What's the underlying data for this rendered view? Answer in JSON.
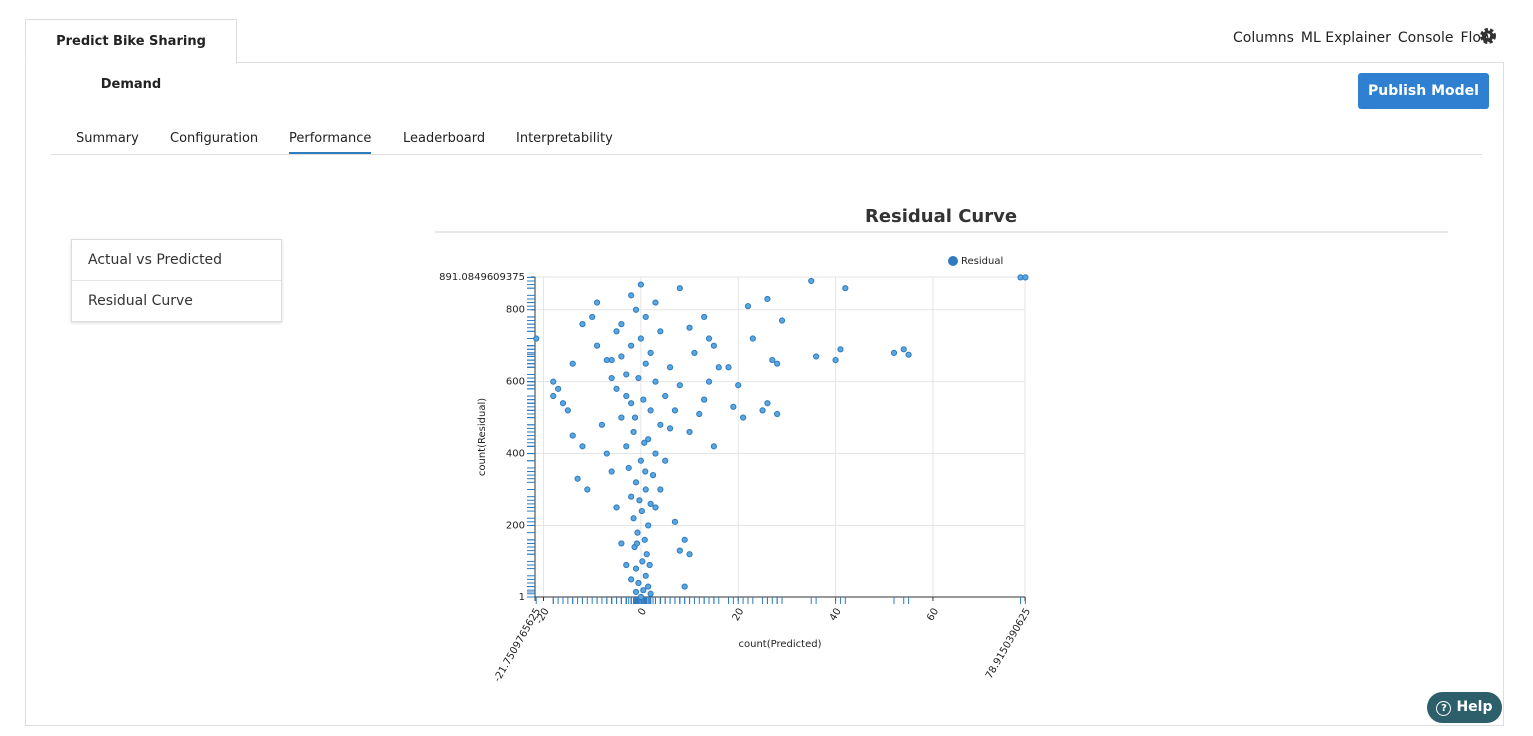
{
  "header": {
    "tab": "Predict Bike Sharing Demand"
  },
  "nav": {
    "links": [
      "Columns",
      "ML Explainer",
      "Console",
      "Flow"
    ]
  },
  "publish_button": "Publish Model",
  "tabs": {
    "items": [
      "Summary",
      "Configuration",
      "Performance",
      "Leaderboard",
      "Interpretability"
    ],
    "active": 2
  },
  "side_menu": [
    "Actual vs Predicted",
    "Residual Curve"
  ],
  "help": "Help",
  "chart_data": {
    "type": "scatter",
    "title": "Residual Curve",
    "x_label": "count(Predicted)",
    "y_label": "count(Residual)",
    "xlim": [
      -21.7509765625,
      78.9150390625
    ],
    "ylim": [
      1,
      891.0849609375
    ],
    "xticks": [
      -21.7509765625,
      -20,
      0,
      20,
      40,
      60,
      78.9150390625
    ],
    "yticks": [
      1,
      200,
      400,
      600,
      800,
      891.0849609375
    ],
    "grid": true,
    "legend": "top-right",
    "series": [
      {
        "name": "Residual",
        "color": "#2f7bbf",
        "x": [
          0,
          0.5,
          -0.5,
          1,
          -1,
          0.3,
          1.2,
          -1.3,
          0.8,
          -0.7,
          1.5,
          -1.5,
          0.2,
          2,
          -2,
          1,
          -1,
          2.5,
          -2.5,
          0,
          3,
          -3,
          1.5,
          -1.5,
          4,
          -4,
          2,
          -2,
          5,
          -5,
          3,
          -3,
          6,
          -6,
          2,
          -2,
          0,
          4,
          -4,
          1,
          -1,
          3,
          -2,
          8,
          0,
          -18,
          -17,
          -12,
          -10,
          -9,
          -14,
          -15,
          -13,
          -11,
          -8,
          -7,
          -6,
          -5,
          -4,
          -3,
          7,
          8,
          9,
          10,
          9,
          10,
          12,
          13,
          14,
          15,
          16,
          14,
          11,
          10,
          13,
          15,
          18,
          20,
          19,
          21,
          22,
          23,
          26,
          27,
          28,
          26,
          28,
          29,
          25,
          35,
          36,
          41,
          40,
          42,
          52,
          54,
          55,
          78,
          79,
          -21.5,
          -18,
          -16,
          -14,
          -12,
          -9,
          -7,
          -6,
          -5,
          -4,
          -3,
          6,
          7,
          8,
          5,
          4,
          3,
          -2,
          2,
          1.5,
          -1,
          0.5,
          -0.5,
          1,
          -1.2,
          0.7,
          -0.3,
          0.9,
          -0.8,
          1.8
        ],
        "values": [
          1,
          20,
          40,
          60,
          80,
          100,
          120,
          140,
          160,
          180,
          200,
          220,
          240,
          260,
          280,
          300,
          320,
          340,
          360,
          380,
          400,
          420,
          440,
          460,
          480,
          500,
          520,
          540,
          560,
          580,
          600,
          620,
          640,
          660,
          680,
          700,
          720,
          740,
          760,
          780,
          800,
          820,
          840,
          860,
          870,
          560,
          580,
          760,
          780,
          820,
          650,
          520,
          330,
          300,
          480,
          400,
          350,
          250,
          150,
          90,
          210,
          130,
          160,
          120,
          30,
          460,
          510,
          550,
          600,
          700,
          640,
          720,
          680,
          750,
          780,
          420,
          640,
          590,
          530,
          500,
          810,
          720,
          830,
          660,
          650,
          540,
          510,
          770,
          520,
          880,
          670,
          690,
          660,
          860,
          680,
          690,
          675,
          890,
          890,
          720,
          600,
          540,
          450,
          420,
          700,
          660,
          610,
          740,
          670,
          560,
          470,
          520,
          590,
          380,
          300,
          250,
          50,
          10,
          30,
          15,
          550,
          610,
          650,
          500,
          430,
          270,
          350,
          150,
          90
        ]
      }
    ]
  }
}
